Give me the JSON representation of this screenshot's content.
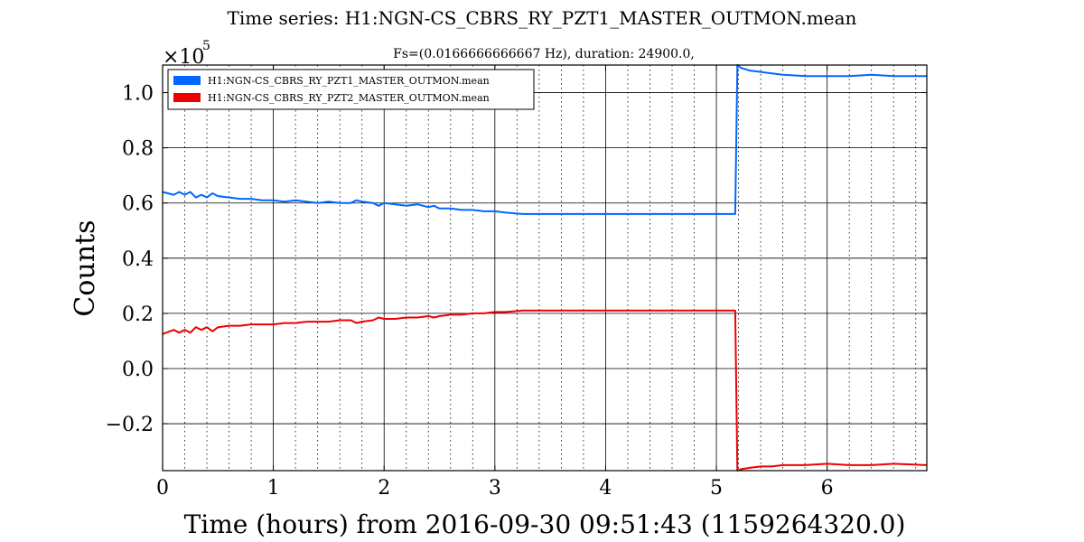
{
  "chart_data": {
    "type": "line",
    "title": "Time series:  H1:NGN-CS_CBRS_RY_PZT1_MASTER_OUTMON.mean",
    "subtitle": "Fs=(0.0166666666667 Hz), duration:  24900.0,",
    "xlabel": "Time (hours) from 2016-09-30 09:51:43 (1159264320.0)",
    "ylabel": "Counts",
    "y_multiplier": "×10",
    "y_multiplier_exp": "5",
    "xlim": [
      0,
      6.9
    ],
    "ylim": [
      -0.37,
      1.1
    ],
    "x_ticks": [
      0,
      1,
      2,
      3,
      4,
      5,
      6
    ],
    "x_tick_labels": [
      "0",
      "1",
      "2",
      "3",
      "4",
      "5",
      "6"
    ],
    "y_ticks": [
      -0.2,
      0.0,
      0.2,
      0.4,
      0.6,
      0.8,
      1.0
    ],
    "y_tick_labels": [
      "−0.2",
      "0.0",
      "0.2",
      "0.4",
      "0.6",
      "0.8",
      "1.0"
    ],
    "grid": true,
    "legend_position": "top-left",
    "series": [
      {
        "name": "H1:NGN-CS_CBRS_RY_PZT1_MASTER_OUTMON.mean",
        "color": "#0066ff",
        "x": [
          0,
          0.1,
          0.15,
          0.2,
          0.25,
          0.3,
          0.35,
          0.4,
          0.45,
          0.5,
          0.6,
          0.7,
          0.8,
          0.9,
          1.0,
          1.1,
          1.2,
          1.3,
          1.4,
          1.5,
          1.6,
          1.7,
          1.75,
          1.8,
          1.9,
          1.95,
          2.0,
          2.1,
          2.2,
          2.3,
          2.4,
          2.45,
          2.5,
          2.6,
          2.7,
          2.8,
          2.9,
          3.0,
          3.1,
          3.25,
          3.5,
          4.0,
          4.5,
          5.0,
          5.17,
          5.19,
          5.22,
          5.3,
          5.4,
          5.5,
          5.6,
          5.8,
          6.0,
          6.2,
          6.4,
          6.6,
          6.9
        ],
        "y": [
          0.64,
          0.63,
          0.64,
          0.63,
          0.64,
          0.62,
          0.63,
          0.62,
          0.635,
          0.625,
          0.62,
          0.615,
          0.615,
          0.61,
          0.61,
          0.605,
          0.61,
          0.605,
          0.6,
          0.605,
          0.6,
          0.6,
          0.61,
          0.605,
          0.6,
          0.59,
          0.6,
          0.595,
          0.59,
          0.595,
          0.585,
          0.59,
          0.58,
          0.58,
          0.575,
          0.575,
          0.57,
          0.57,
          0.565,
          0.56,
          0.56,
          0.56,
          0.56,
          0.56,
          0.56,
          1.1,
          1.09,
          1.08,
          1.075,
          1.07,
          1.065,
          1.06,
          1.06,
          1.06,
          1.065,
          1.06,
          1.06
        ]
      },
      {
        "name": "H1:NGN-CS_CBRS_RY_PZT2_MASTER_OUTMON.mean",
        "color": "#ee0000",
        "x": [
          0,
          0.1,
          0.15,
          0.2,
          0.25,
          0.3,
          0.35,
          0.4,
          0.45,
          0.5,
          0.6,
          0.7,
          0.8,
          0.9,
          1.0,
          1.1,
          1.2,
          1.3,
          1.4,
          1.5,
          1.6,
          1.7,
          1.75,
          1.8,
          1.9,
          1.95,
          2.0,
          2.1,
          2.2,
          2.3,
          2.4,
          2.45,
          2.5,
          2.6,
          2.7,
          2.8,
          2.9,
          3.0,
          3.1,
          3.25,
          3.5,
          4.0,
          4.5,
          5.0,
          5.17,
          5.19,
          5.22,
          5.3,
          5.4,
          5.5,
          5.6,
          5.8,
          6.0,
          6.2,
          6.4,
          6.6,
          6.9
        ],
        "y": [
          0.125,
          0.14,
          0.13,
          0.14,
          0.13,
          0.15,
          0.14,
          0.15,
          0.135,
          0.15,
          0.155,
          0.155,
          0.16,
          0.16,
          0.16,
          0.165,
          0.165,
          0.17,
          0.17,
          0.17,
          0.175,
          0.175,
          0.165,
          0.17,
          0.175,
          0.185,
          0.18,
          0.18,
          0.185,
          0.185,
          0.19,
          0.185,
          0.19,
          0.195,
          0.195,
          0.2,
          0.2,
          0.205,
          0.205,
          0.21,
          0.21,
          0.21,
          0.21,
          0.21,
          0.21,
          -0.37,
          -0.365,
          -0.36,
          -0.355,
          -0.355,
          -0.35,
          -0.35,
          -0.345,
          -0.35,
          -0.35,
          -0.345,
          -0.35
        ]
      }
    ]
  }
}
